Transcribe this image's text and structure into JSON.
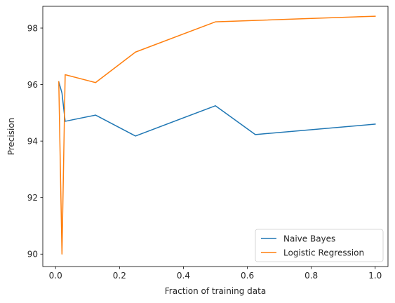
{
  "chart_data": {
    "type": "line",
    "title": "",
    "xlabel": "Fraction of training data",
    "ylabel": "Precision",
    "xlim": [
      -0.04,
      1.04
    ],
    "ylim": [
      89.56,
      98.77
    ],
    "xticks": [
      {
        "value": 0.0,
        "label": "0.0"
      },
      {
        "value": 0.2,
        "label": "0.2"
      },
      {
        "value": 0.4,
        "label": "0.4"
      },
      {
        "value": 0.6,
        "label": "0.6"
      },
      {
        "value": 0.8,
        "label": "0.8"
      },
      {
        "value": 1.0,
        "label": "1.0"
      }
    ],
    "yticks": [
      {
        "value": 90,
        "label": "90"
      },
      {
        "value": 92,
        "label": "92"
      },
      {
        "value": 94,
        "label": "94"
      },
      {
        "value": 96,
        "label": "96"
      },
      {
        "value": 98,
        "label": "98"
      }
    ],
    "grid": false,
    "legend_position": "lower-right",
    "series": [
      {
        "name": "Naive Bayes",
        "color": "#1f77b4",
        "x": [
          0.01,
          0.02,
          0.03,
          0.125,
          0.25,
          0.5,
          0.625,
          1.0
        ],
        "y": [
          96.1,
          95.7,
          94.7,
          94.92,
          94.18,
          95.25,
          94.23,
          94.6
        ]
      },
      {
        "name": "Logistic Regression",
        "color": "#ff7f0e",
        "x": [
          0.01,
          0.02,
          0.03,
          0.125,
          0.25,
          0.5,
          1.0
        ],
        "y": [
          96.1,
          90.0,
          96.35,
          96.07,
          97.15,
          98.22,
          98.42
        ]
      }
    ]
  }
}
